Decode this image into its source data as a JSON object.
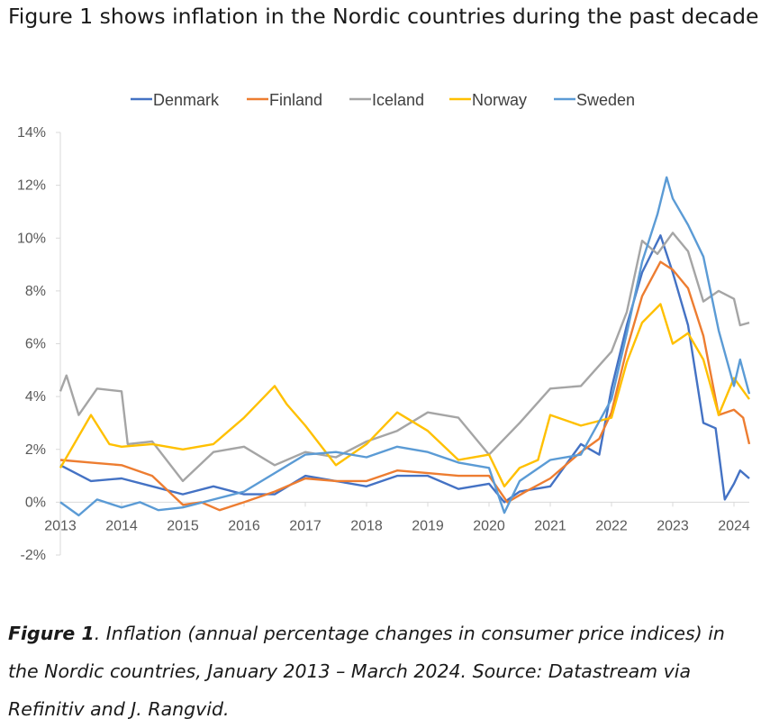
{
  "intro_text": "Figure 1 shows inflation in the Nordic countries during the past decade.",
  "caption": {
    "label": "Figure 1",
    "text": ". Inflation (annual percentage changes in consumer price indices) in the Nordic countries, January 2013 – March 2024. Source: Datastream via Refinitiv and J. Rangvid."
  },
  "chart_data": {
    "type": "line",
    "title": "",
    "xlabel": "",
    "ylabel": "",
    "x_start": "2013-01",
    "x_end": "2024-03",
    "xticks": [
      "2013",
      "2014",
      "2015",
      "2016",
      "2017",
      "2018",
      "2019",
      "2020",
      "2021",
      "2022",
      "2023",
      "2024"
    ],
    "ylim": [
      -2,
      14
    ],
    "yticks": [
      "14%",
      "12%",
      "10%",
      "8%",
      "6%",
      "4%",
      "2%",
      "0%",
      "-2%"
    ],
    "grid": false,
    "legend_position": "top",
    "series": [
      {
        "name": "Denmark",
        "color": "#4472c4",
        "points": [
          [
            2013.0,
            1.4
          ],
          [
            2013.5,
            0.8
          ],
          [
            2014.0,
            0.9
          ],
          [
            2014.5,
            0.6
          ],
          [
            2015.0,
            0.3
          ],
          [
            2015.5,
            0.6
          ],
          [
            2016.0,
            0.3
          ],
          [
            2016.5,
            0.3
          ],
          [
            2017.0,
            1.0
          ],
          [
            2017.5,
            0.8
          ],
          [
            2018.0,
            0.6
          ],
          [
            2018.5,
            1.0
          ],
          [
            2019.0,
            1.0
          ],
          [
            2019.5,
            0.5
          ],
          [
            2020.0,
            0.7
          ],
          [
            2020.25,
            0.0
          ],
          [
            2020.5,
            0.4
          ],
          [
            2021.0,
            0.6
          ],
          [
            2021.5,
            2.2
          ],
          [
            2021.8,
            1.8
          ],
          [
            2022.0,
            4.3
          ],
          [
            2022.25,
            6.7
          ],
          [
            2022.5,
            8.7
          ],
          [
            2022.8,
            10.1
          ],
          [
            2023.0,
            8.7
          ],
          [
            2023.25,
            6.7
          ],
          [
            2023.5,
            3.0
          ],
          [
            2023.7,
            2.8
          ],
          [
            2023.85,
            0.1
          ],
          [
            2024.0,
            0.7
          ],
          [
            2024.1,
            1.2
          ],
          [
            2024.25,
            0.9
          ]
        ]
      },
      {
        "name": "Finland",
        "color": "#ed7d31",
        "points": [
          [
            2013.0,
            1.6
          ],
          [
            2013.5,
            1.5
          ],
          [
            2014.0,
            1.4
          ],
          [
            2014.5,
            1.0
          ],
          [
            2015.0,
            -0.1
          ],
          [
            2015.3,
            0.0
          ],
          [
            2015.6,
            -0.3
          ],
          [
            2016.0,
            0.0
          ],
          [
            2016.5,
            0.4
          ],
          [
            2017.0,
            0.9
          ],
          [
            2017.5,
            0.8
          ],
          [
            2018.0,
            0.8
          ],
          [
            2018.5,
            1.2
          ],
          [
            2019.0,
            1.1
          ],
          [
            2019.5,
            1.0
          ],
          [
            2020.0,
            1.0
          ],
          [
            2020.3,
            0.0
          ],
          [
            2020.6,
            0.4
          ],
          [
            2021.0,
            0.9
          ],
          [
            2021.5,
            1.9
          ],
          [
            2021.8,
            2.4
          ],
          [
            2022.0,
            3.4
          ],
          [
            2022.25,
            5.8
          ],
          [
            2022.5,
            7.8
          ],
          [
            2022.8,
            9.1
          ],
          [
            2023.0,
            8.8
          ],
          [
            2023.25,
            8.1
          ],
          [
            2023.5,
            6.3
          ],
          [
            2023.75,
            3.3
          ],
          [
            2024.0,
            3.5
          ],
          [
            2024.15,
            3.2
          ],
          [
            2024.25,
            2.2
          ]
        ]
      },
      {
        "name": "Iceland",
        "color": "#a5a5a5",
        "points": [
          [
            2013.0,
            4.2
          ],
          [
            2013.1,
            4.8
          ],
          [
            2013.3,
            3.3
          ],
          [
            2013.6,
            4.3
          ],
          [
            2014.0,
            4.2
          ],
          [
            2014.1,
            2.2
          ],
          [
            2014.5,
            2.3
          ],
          [
            2015.0,
            0.8
          ],
          [
            2015.5,
            1.9
          ],
          [
            2016.0,
            2.1
          ],
          [
            2016.5,
            1.4
          ],
          [
            2017.0,
            1.9
          ],
          [
            2017.5,
            1.7
          ],
          [
            2018.0,
            2.3
          ],
          [
            2018.5,
            2.7
          ],
          [
            2019.0,
            3.4
          ],
          [
            2019.5,
            3.2
          ],
          [
            2020.0,
            1.8
          ],
          [
            2020.5,
            3.0
          ],
          [
            2021.0,
            4.3
          ],
          [
            2021.5,
            4.4
          ],
          [
            2022.0,
            5.7
          ],
          [
            2022.25,
            7.2
          ],
          [
            2022.5,
            9.9
          ],
          [
            2022.75,
            9.4
          ],
          [
            2023.0,
            10.2
          ],
          [
            2023.25,
            9.5
          ],
          [
            2023.5,
            7.6
          ],
          [
            2023.75,
            8.0
          ],
          [
            2024.0,
            7.7
          ],
          [
            2024.1,
            6.7
          ],
          [
            2024.25,
            6.8
          ]
        ]
      },
      {
        "name": "Norway",
        "color": "#ffc000",
        "points": [
          [
            2013.0,
            1.3
          ],
          [
            2013.5,
            3.3
          ],
          [
            2013.8,
            2.2
          ],
          [
            2014.0,
            2.1
          ],
          [
            2014.5,
            2.2
          ],
          [
            2015.0,
            2.0
          ],
          [
            2015.5,
            2.2
          ],
          [
            2016.0,
            3.2
          ],
          [
            2016.5,
            4.4
          ],
          [
            2016.7,
            3.7
          ],
          [
            2017.0,
            2.9
          ],
          [
            2017.5,
            1.4
          ],
          [
            2018.0,
            2.2
          ],
          [
            2018.5,
            3.4
          ],
          [
            2019.0,
            2.7
          ],
          [
            2019.5,
            1.6
          ],
          [
            2020.0,
            1.8
          ],
          [
            2020.25,
            0.6
          ],
          [
            2020.5,
            1.3
          ],
          [
            2020.8,
            1.6
          ],
          [
            2021.0,
            3.3
          ],
          [
            2021.5,
            2.9
          ],
          [
            2022.0,
            3.2
          ],
          [
            2022.25,
            5.3
          ],
          [
            2022.5,
            6.8
          ],
          [
            2022.8,
            7.5
          ],
          [
            2023.0,
            6.0
          ],
          [
            2023.25,
            6.4
          ],
          [
            2023.5,
            5.4
          ],
          [
            2023.75,
            3.3
          ],
          [
            2024.0,
            4.7
          ],
          [
            2024.25,
            3.9
          ]
        ]
      },
      {
        "name": "Sweden",
        "color": "#5b9bd5",
        "points": [
          [
            2013.0,
            0.0
          ],
          [
            2013.3,
            -0.5
          ],
          [
            2013.6,
            0.1
          ],
          [
            2014.0,
            -0.2
          ],
          [
            2014.3,
            0.0
          ],
          [
            2014.6,
            -0.3
          ],
          [
            2015.0,
            -0.2
          ],
          [
            2015.5,
            0.1
          ],
          [
            2016.0,
            0.4
          ],
          [
            2016.5,
            1.1
          ],
          [
            2017.0,
            1.8
          ],
          [
            2017.5,
            1.9
          ],
          [
            2018.0,
            1.7
          ],
          [
            2018.5,
            2.1
          ],
          [
            2019.0,
            1.9
          ],
          [
            2019.5,
            1.5
          ],
          [
            2020.0,
            1.3
          ],
          [
            2020.25,
            -0.4
          ],
          [
            2020.5,
            0.8
          ],
          [
            2021.0,
            1.6
          ],
          [
            2021.5,
            1.8
          ],
          [
            2022.0,
            3.9
          ],
          [
            2022.25,
            6.4
          ],
          [
            2022.5,
            9.1
          ],
          [
            2022.75,
            10.9
          ],
          [
            2022.9,
            12.3
          ],
          [
            2023.0,
            11.5
          ],
          [
            2023.25,
            10.5
          ],
          [
            2023.5,
            9.3
          ],
          [
            2023.75,
            6.5
          ],
          [
            2024.0,
            4.4
          ],
          [
            2024.1,
            5.4
          ],
          [
            2024.25,
            4.1
          ]
        ]
      }
    ]
  }
}
